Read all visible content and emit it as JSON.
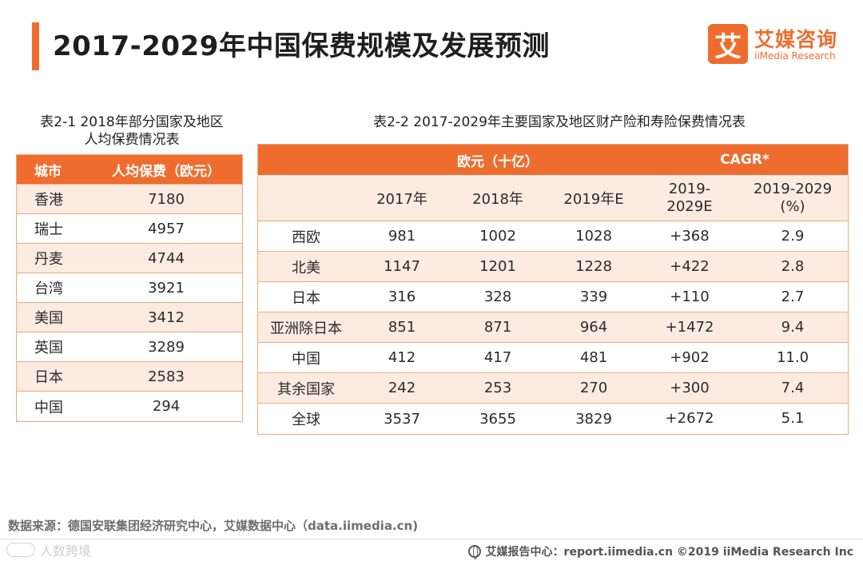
{
  "title": "2017-2029年中国保费规模及发展预测",
  "logo": {
    "mark": "艾",
    "name": "艾媒咨询",
    "sub": "iiMedia Research"
  },
  "table1": {
    "caption_line1": "表2-1 2018年部分国家及地区",
    "caption_line2": "人均保费情况表",
    "headers": [
      "城市",
      "人均保费（欧元）"
    ],
    "rows": [
      {
        "region": "香港",
        "value": "7180"
      },
      {
        "region": "瑞士",
        "value": "4957"
      },
      {
        "region": "丹麦",
        "value": "4744"
      },
      {
        "region": "台湾",
        "value": "3921"
      },
      {
        "region": "美国",
        "value": "3412"
      },
      {
        "region": "英国",
        "value": "3289"
      },
      {
        "region": "日本",
        "value": "2583"
      },
      {
        "region": "中国",
        "value": "294"
      }
    ]
  },
  "table2": {
    "caption": "表2-2 2017-2029年主要国家及地区财产险和寿险保费情况表",
    "group_headers": {
      "euro": "欧元（十亿）",
      "cagr": "CAGR*"
    },
    "sub_headers": {
      "y2017": "2017年",
      "y2018": "2018年",
      "y2019": "2019年E",
      "diff_l1": "2019-",
      "diff_l2": "2029E",
      "pct_l1": "2019-2029",
      "pct_l2": "(%)"
    },
    "rows": [
      {
        "region": "西欧",
        "y2017": "981",
        "y2018": "1002",
        "y2019": "1028",
        "diff": "+368",
        "pct": "2.9"
      },
      {
        "region": "北美",
        "y2017": "1147",
        "y2018": "1201",
        "y2019": "1228",
        "diff": "+422",
        "pct": "2.8"
      },
      {
        "region": "日本",
        "y2017": "316",
        "y2018": "328",
        "y2019": "339",
        "diff": "+110",
        "pct": "2.7"
      },
      {
        "region": "亚洲除日本",
        "y2017": "851",
        "y2018": "871",
        "y2019": "964",
        "diff": "+1472",
        "pct": "9.4"
      },
      {
        "region": "中国",
        "y2017": "412",
        "y2018": "417",
        "y2019": "481",
        "diff": "+902",
        "pct": "11.0"
      },
      {
        "region": "其余国家",
        "y2017": "242",
        "y2018": "253",
        "y2019": "270",
        "diff": "+300",
        "pct": "7.4"
      },
      {
        "region": "全球",
        "y2017": "3537",
        "y2018": "3655",
        "y2019": "3829",
        "diff": "+2672",
        "pct": "5.1"
      }
    ]
  },
  "source": "数据来源：德国安联集团经济研究中心，艾媒数据中心（data.iimedia.cn)",
  "footer": "艾媒报告中心：report.iimedia.cn  ©2019  iiMedia Research  Inc",
  "watermark": "人数跨境"
}
